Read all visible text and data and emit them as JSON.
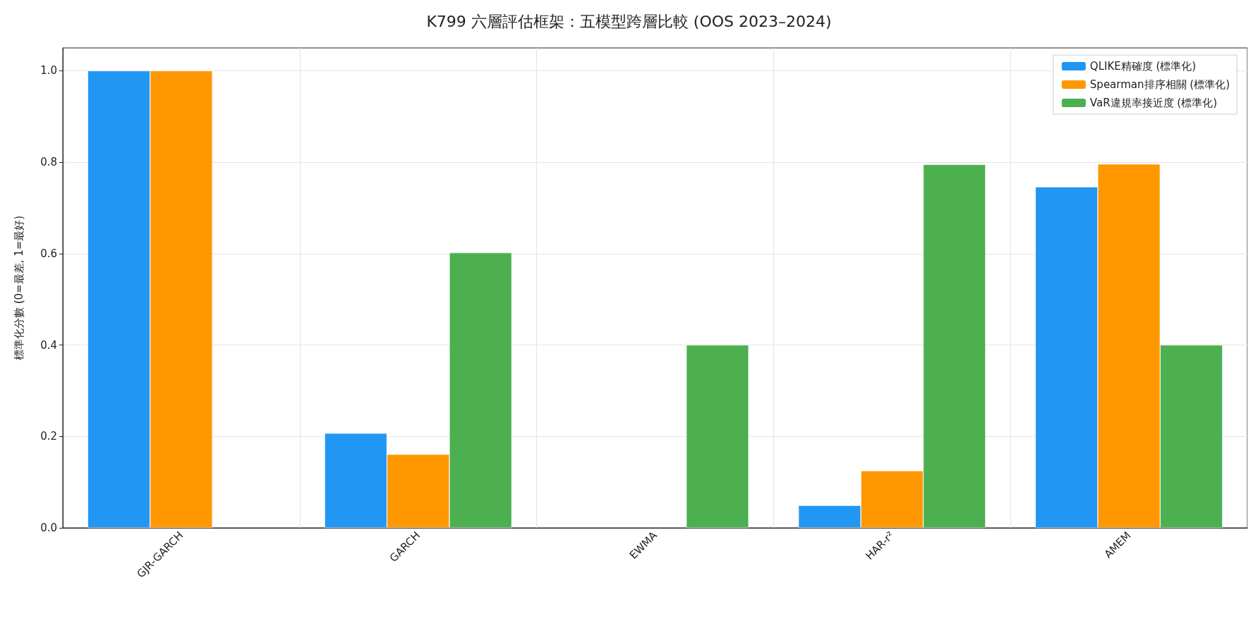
{
  "chart_data": {
    "type": "bar",
    "title": "K799 六層評估框架：五模型跨層比較 (OOS 2023–2024)",
    "ylabel": "標準化分數 (0=最差, 1=最好)",
    "categories": [
      "GJR-GARCH",
      "GARCH",
      "EWMA",
      "HAR-r²",
      "AMEM"
    ],
    "series": [
      {
        "name": "QLIKE精確度 (標準化)",
        "color": "#2196f3",
        "values": [
          1.0,
          0.207,
          0,
          0.049,
          0.746
        ]
      },
      {
        "name": "Spearman排序相關 (標準化)",
        "color": "#ff9800",
        "values": [
          1.0,
          0.161,
          0,
          0.125,
          0.796
        ]
      },
      {
        "name": "VaR違規率接近度 (標準化)",
        "color": "#4caf50",
        "values": [
          0,
          0.602,
          0.4,
          0.795,
          0.4
        ]
      }
    ],
    "ylim": [
      0,
      1.05
    ],
    "yticks": [
      {
        "value": 0,
        "label": "0.0"
      },
      0.2,
      0.4,
      0.6,
      0.8,
      {
        "value": 1,
        "label": "1.0"
      }
    ],
    "grid": true,
    "legend": "top right"
  }
}
